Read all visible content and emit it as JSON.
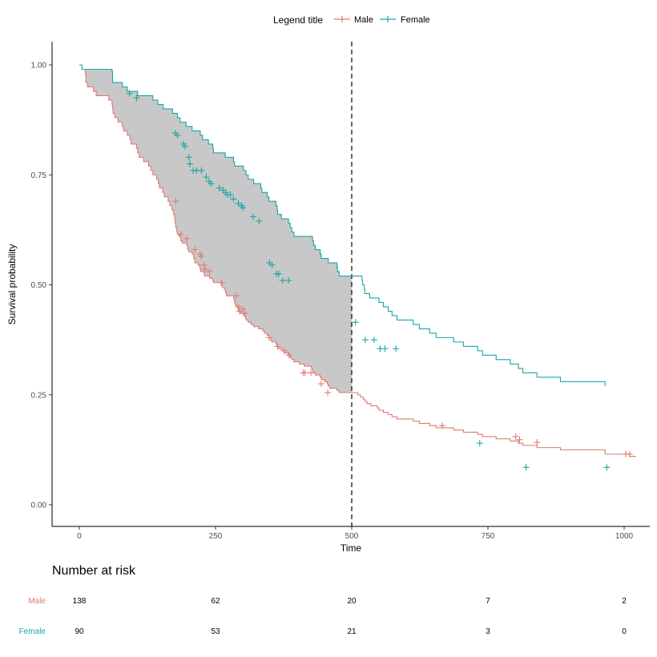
{
  "chart_data": {
    "type": "line",
    "subtype": "kaplan-meier-survival",
    "xlabel": "Time",
    "ylabel": "Survival probability",
    "xlim": [
      0,
      1000
    ],
    "ylim": [
      0,
      1
    ],
    "x_ticks": [
      0,
      250,
      500,
      750,
      1000
    ],
    "y_ticks": [
      0,
      0.25,
      0.5,
      0.75,
      1.0
    ],
    "y_tick_labels": [
      "0.00",
      "0.25",
      "0.50",
      "0.75",
      "1.00"
    ],
    "grid": false,
    "legend": {
      "title": "Legend title",
      "position": "top",
      "entries": [
        "Male",
        "Female"
      ]
    },
    "reference_line": {
      "x": 500,
      "style": "dashed"
    },
    "shaded_between_curves": {
      "from": 0,
      "to": 500,
      "color": "#c8c8c8"
    },
    "series": [
      {
        "name": "Male",
        "color": "#e07b72",
        "steps": [
          [
            0,
            1.0
          ],
          [
            5,
            0.99
          ],
          [
            11,
            0.98
          ],
          [
            12,
            0.96
          ],
          [
            15,
            0.95
          ],
          [
            26,
            0.94
          ],
          [
            31,
            0.93
          ],
          [
            54,
            0.92
          ],
          [
            60,
            0.91
          ],
          [
            61,
            0.9
          ],
          [
            62,
            0.89
          ],
          [
            65,
            0.88
          ],
          [
            71,
            0.87
          ],
          [
            79,
            0.86
          ],
          [
            81,
            0.85
          ],
          [
            88,
            0.84
          ],
          [
            93,
            0.83
          ],
          [
            95,
            0.82
          ],
          [
            105,
            0.81
          ],
          [
            107,
            0.8
          ],
          [
            110,
            0.79
          ],
          [
            118,
            0.78
          ],
          [
            127,
            0.77
          ],
          [
            131,
            0.76
          ],
          [
            135,
            0.75
          ],
          [
            142,
            0.74
          ],
          [
            145,
            0.73
          ],
          [
            147,
            0.72
          ],
          [
            153,
            0.71
          ],
          [
            156,
            0.7
          ],
          [
            163,
            0.69
          ],
          [
            166,
            0.68
          ],
          [
            170,
            0.67
          ],
          [
            173,
            0.66
          ],
          [
            175,
            0.65
          ],
          [
            176,
            0.64
          ],
          [
            177,
            0.63
          ],
          [
            179,
            0.62
          ],
          [
            180,
            0.615
          ],
          [
            183,
            0.61
          ],
          [
            186,
            0.6
          ],
          [
            189,
            0.595
          ],
          [
            197,
            0.59
          ],
          [
            199,
            0.58
          ],
          [
            201,
            0.575
          ],
          [
            207,
            0.57
          ],
          [
            210,
            0.56
          ],
          [
            212,
            0.55
          ],
          [
            218,
            0.545
          ],
          [
            221,
            0.54
          ],
          [
            222,
            0.535
          ],
          [
            223,
            0.53
          ],
          [
            229,
            0.525
          ],
          [
            230,
            0.52
          ],
          [
            239,
            0.515
          ],
          [
            245,
            0.51
          ],
          [
            246,
            0.505
          ],
          [
            260,
            0.5
          ],
          [
            262,
            0.495
          ],
          [
            266,
            0.49
          ],
          [
            268,
            0.485
          ],
          [
            269,
            0.48
          ],
          [
            270,
            0.475
          ],
          [
            283,
            0.47
          ],
          [
            284,
            0.465
          ],
          [
            285,
            0.46
          ],
          [
            286,
            0.455
          ],
          [
            288,
            0.45
          ],
          [
            291,
            0.445
          ],
          [
            293,
            0.44
          ],
          [
            296,
            0.435
          ],
          [
            301,
            0.43
          ],
          [
            305,
            0.425
          ],
          [
            306,
            0.42
          ],
          [
            310,
            0.415
          ],
          [
            315,
            0.41
          ],
          [
            320,
            0.405
          ],
          [
            329,
            0.4
          ],
          [
            337,
            0.395
          ],
          [
            340,
            0.39
          ],
          [
            345,
            0.385
          ],
          [
            348,
            0.38
          ],
          [
            351,
            0.375
          ],
          [
            353,
            0.37
          ],
          [
            361,
            0.365
          ],
          [
            363,
            0.36
          ],
          [
            364,
            0.355
          ],
          [
            371,
            0.35
          ],
          [
            376,
            0.345
          ],
          [
            383,
            0.34
          ],
          [
            387,
            0.335
          ],
          [
            390,
            0.33
          ],
          [
            394,
            0.325
          ],
          [
            404,
            0.32
          ],
          [
            413,
            0.315
          ],
          [
            426,
            0.31
          ],
          [
            428,
            0.305
          ],
          [
            429,
            0.3
          ],
          [
            433,
            0.295
          ],
          [
            442,
            0.29
          ],
          [
            444,
            0.285
          ],
          [
            450,
            0.28
          ],
          [
            455,
            0.275
          ],
          [
            457,
            0.27
          ],
          [
            460,
            0.265
          ],
          [
            473,
            0.26
          ],
          [
            477,
            0.255
          ],
          [
            511,
            0.25
          ],
          [
            516,
            0.245
          ],
          [
            521,
            0.24
          ],
          [
            524,
            0.235
          ],
          [
            528,
            0.23
          ],
          [
            535,
            0.225
          ],
          [
            547,
            0.22
          ],
          [
            550,
            0.215
          ],
          [
            558,
            0.21
          ],
          [
            567,
            0.205
          ],
          [
            574,
            0.2
          ],
          [
            583,
            0.195
          ],
          [
            613,
            0.19
          ],
          [
            624,
            0.185
          ],
          [
            643,
            0.18
          ],
          [
            655,
            0.175
          ],
          [
            687,
            0.17
          ],
          [
            705,
            0.165
          ],
          [
            731,
            0.16
          ],
          [
            740,
            0.155
          ],
          [
            765,
            0.15
          ],
          [
            791,
            0.145
          ],
          [
            806,
            0.14
          ],
          [
            814,
            0.135
          ],
          [
            840,
            0.13
          ],
          [
            883,
            0.125
          ],
          [
            965,
            0.115
          ],
          [
            1010,
            0.11
          ],
          [
            1022,
            0.11
          ]
        ],
        "censored": [
          [
            177,
            0.69
          ],
          [
            186,
            0.615
          ],
          [
            197,
            0.605
          ],
          [
            212,
            0.58
          ],
          [
            222,
            0.57
          ],
          [
            224,
            0.565
          ],
          [
            229,
            0.545
          ],
          [
            231,
            0.535
          ],
          [
            239,
            0.53
          ],
          [
            261,
            0.505
          ],
          [
            288,
            0.475
          ],
          [
            292,
            0.45
          ],
          [
            294,
            0.44
          ],
          [
            300,
            0.445
          ],
          [
            304,
            0.435
          ],
          [
            348,
            0.38
          ],
          [
            364,
            0.36
          ],
          [
            376,
            0.35
          ],
          [
            385,
            0.34
          ],
          [
            411,
            0.3
          ],
          [
            414,
            0.3
          ],
          [
            425,
            0.3
          ],
          [
            444,
            0.275
          ],
          [
            456,
            0.255
          ],
          [
            666,
            0.18
          ],
          [
            801,
            0.155
          ],
          [
            808,
            0.148
          ],
          [
            840,
            0.142
          ],
          [
            1003,
            0.115
          ],
          [
            1010,
            0.115
          ]
        ]
      },
      {
        "name": "Female",
        "color": "#1aa6a6",
        "steps": [
          [
            0,
            1.0
          ],
          [
            5,
            0.99
          ],
          [
            60,
            0.985
          ],
          [
            61,
            0.96
          ],
          [
            79,
            0.95
          ],
          [
            88,
            0.94
          ],
          [
            107,
            0.93
          ],
          [
            135,
            0.92
          ],
          [
            144,
            0.91
          ],
          [
            154,
            0.9
          ],
          [
            171,
            0.89
          ],
          [
            180,
            0.88
          ],
          [
            185,
            0.87
          ],
          [
            196,
            0.86
          ],
          [
            207,
            0.85
          ],
          [
            222,
            0.84
          ],
          [
            226,
            0.83
          ],
          [
            237,
            0.82
          ],
          [
            245,
            0.81
          ],
          [
            246,
            0.8
          ],
          [
            268,
            0.79
          ],
          [
            283,
            0.78
          ],
          [
            285,
            0.77
          ],
          [
            301,
            0.76
          ],
          [
            306,
            0.75
          ],
          [
            310,
            0.74
          ],
          [
            320,
            0.73
          ],
          [
            333,
            0.72
          ],
          [
            335,
            0.71
          ],
          [
            345,
            0.7
          ],
          [
            348,
            0.69
          ],
          [
            361,
            0.68
          ],
          [
            363,
            0.67
          ],
          [
            364,
            0.66
          ],
          [
            371,
            0.65
          ],
          [
            384,
            0.64
          ],
          [
            387,
            0.63
          ],
          [
            390,
            0.62
          ],
          [
            394,
            0.61
          ],
          [
            428,
            0.6
          ],
          [
            430,
            0.59
          ],
          [
            433,
            0.58
          ],
          [
            442,
            0.57
          ],
          [
            444,
            0.56
          ],
          [
            457,
            0.55
          ],
          [
            473,
            0.54
          ],
          [
            474,
            0.53
          ],
          [
            477,
            0.52
          ],
          [
            519,
            0.51
          ],
          [
            520,
            0.5
          ],
          [
            523,
            0.49
          ],
          [
            524,
            0.48
          ],
          [
            533,
            0.47
          ],
          [
            550,
            0.46
          ],
          [
            558,
            0.45
          ],
          [
            567,
            0.44
          ],
          [
            574,
            0.43
          ],
          [
            583,
            0.42
          ],
          [
            613,
            0.41
          ],
          [
            624,
            0.4
          ],
          [
            643,
            0.39
          ],
          [
            655,
            0.38
          ],
          [
            687,
            0.37
          ],
          [
            705,
            0.36
          ],
          [
            731,
            0.35
          ],
          [
            740,
            0.34
          ],
          [
            765,
            0.33
          ],
          [
            791,
            0.32
          ],
          [
            806,
            0.31
          ],
          [
            814,
            0.3
          ],
          [
            840,
            0.29
          ],
          [
            883,
            0.28
          ],
          [
            965,
            0.27
          ],
          [
            965,
            0.27
          ]
        ],
        "censored": [
          [
            92,
            0.935
          ],
          [
            105,
            0.925
          ],
          [
            176,
            0.845
          ],
          [
            180,
            0.84
          ],
          [
            191,
            0.82
          ],
          [
            194,
            0.815
          ],
          [
            201,
            0.79
          ],
          [
            203,
            0.775
          ],
          [
            209,
            0.76
          ],
          [
            215,
            0.76
          ],
          [
            224,
            0.76
          ],
          [
            233,
            0.745
          ],
          [
            238,
            0.735
          ],
          [
            242,
            0.73
          ],
          [
            257,
            0.72
          ],
          [
            264,
            0.715
          ],
          [
            268,
            0.71
          ],
          [
            272,
            0.705
          ],
          [
            277,
            0.705
          ],
          [
            283,
            0.695
          ],
          [
            292,
            0.685
          ],
          [
            298,
            0.68
          ],
          [
            300,
            0.675
          ],
          [
            319,
            0.655
          ],
          [
            330,
            0.645
          ],
          [
            349,
            0.55
          ],
          [
            354,
            0.545
          ],
          [
            362,
            0.525
          ],
          [
            366,
            0.525
          ],
          [
            373,
            0.51
          ],
          [
            384,
            0.51
          ],
          [
            507,
            0.415
          ],
          [
            525,
            0.375
          ],
          [
            541,
            0.375
          ],
          [
            552,
            0.355
          ],
          [
            561,
            0.355
          ],
          [
            581,
            0.355
          ],
          [
            735,
            0.14
          ],
          [
            820,
            0.085
          ],
          [
            968,
            0.085
          ]
        ]
      }
    ],
    "risk_table": {
      "title": "Number at risk",
      "times": [
        0,
        250,
        500,
        750,
        1000
      ],
      "rows": [
        {
          "group": "Male",
          "color": "#e07b72",
          "values": [
            138,
            62,
            20,
            7,
            2
          ]
        },
        {
          "group": "Female",
          "color": "#1aa6a6",
          "values": [
            90,
            53,
            21,
            3,
            0
          ]
        }
      ]
    }
  }
}
